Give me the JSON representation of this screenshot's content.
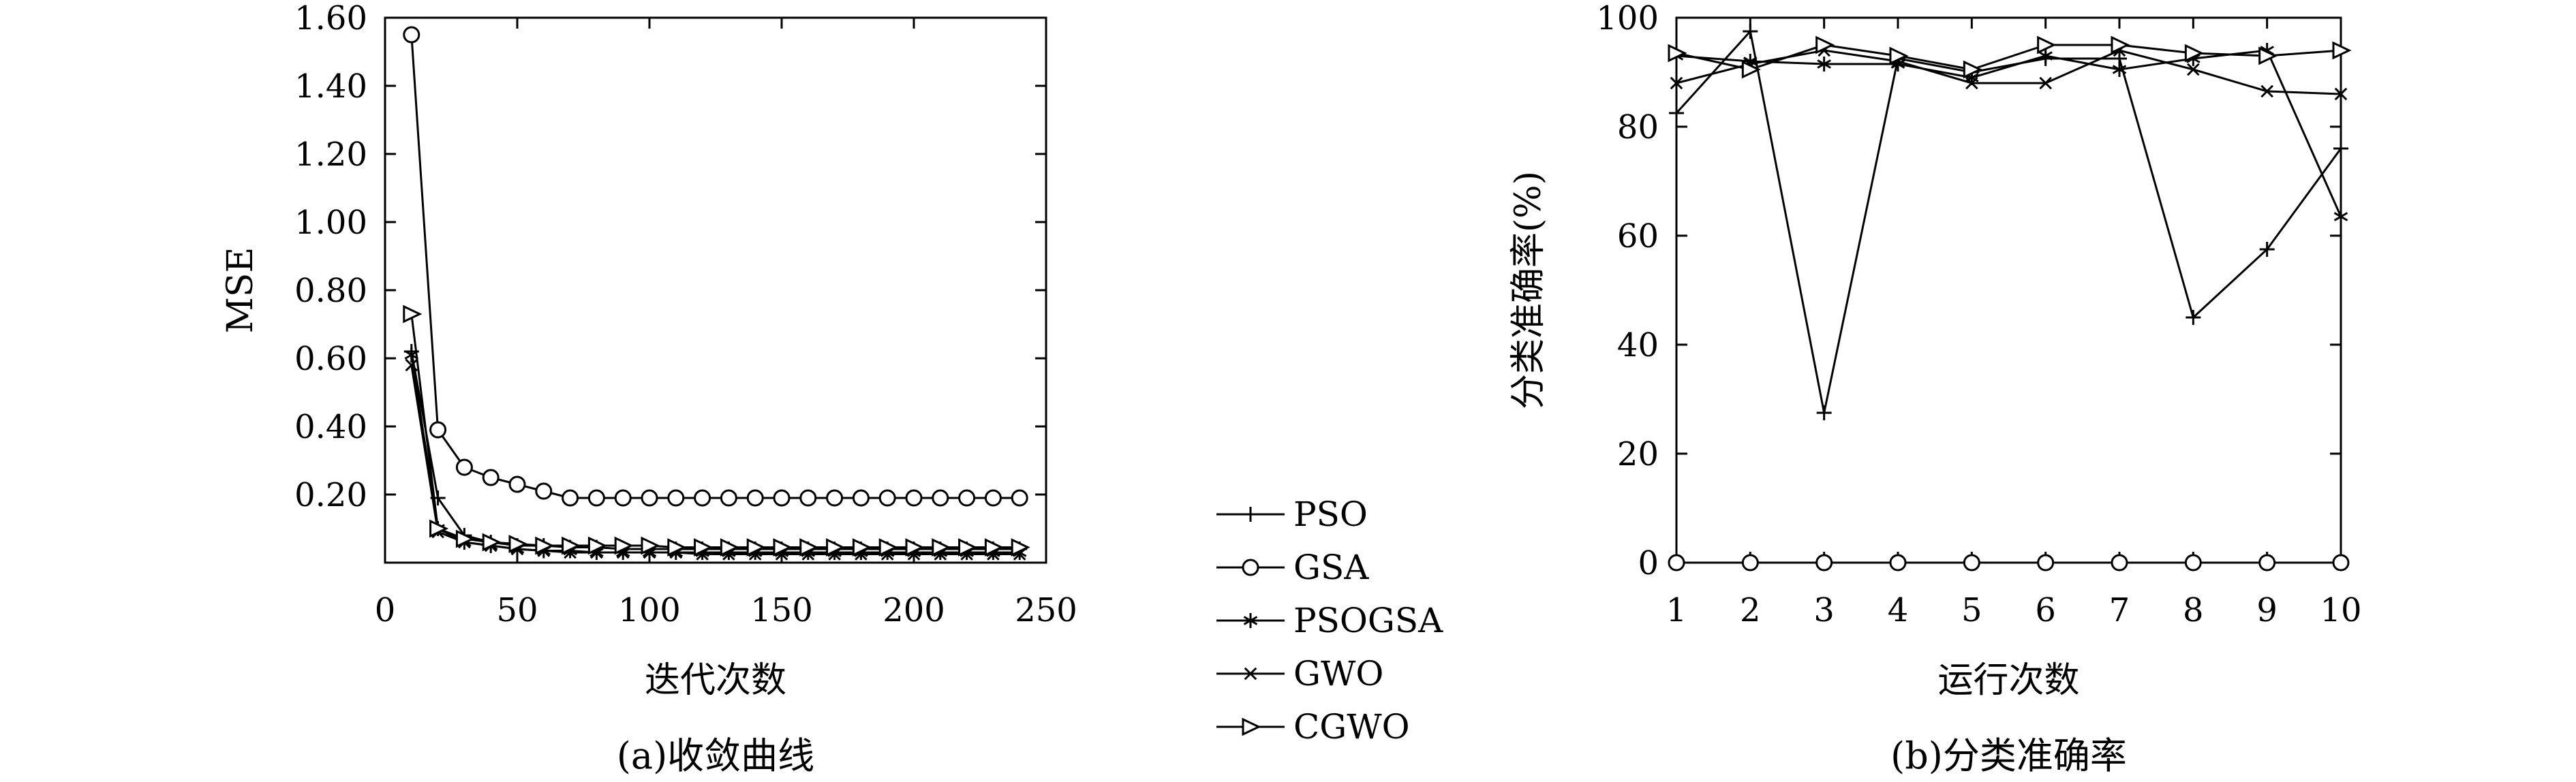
{
  "colors": {
    "ink": "#000000",
    "background": "#ffffff"
  },
  "legend": [
    "PSO",
    "GSA",
    "PSOGSA",
    "GWO",
    "CGWO"
  ],
  "chart_data": [
    {
      "type": "line",
      "caption": "(a)收敛曲线",
      "xlabel": "迭代次数",
      "ylabel": "MSE",
      "xlim": [
        0,
        250
      ],
      "ylim": [
        0,
        1.6
      ],
      "xticks": [
        0,
        50,
        100,
        150,
        200,
        250
      ],
      "yticks": [
        0.2,
        0.4,
        0.6,
        0.8,
        1.0,
        1.2,
        1.4,
        1.6
      ],
      "x_tick_labels": [
        "0",
        "50",
        "100",
        "150",
        "200",
        "250"
      ],
      "y_tick_labels": [
        "0.20",
        "0.40",
        "0.60",
        "0.80",
        "1.00",
        "1.20",
        "1.40",
        "1.60"
      ],
      "grid": false,
      "x": [
        10,
        20,
        30,
        40,
        50,
        60,
        70,
        80,
        90,
        100,
        110,
        120,
        130,
        140,
        150,
        160,
        170,
        180,
        190,
        200,
        210,
        220,
        230,
        240
      ],
      "series": [
        {
          "name": "PSO",
          "marker": "plus",
          "values": [
            0.62,
            0.19,
            0.08,
            0.06,
            0.05,
            0.05,
            0.045,
            0.045,
            0.04,
            0.04,
            0.04,
            0.04,
            0.04,
            0.04,
            0.04,
            0.04,
            0.04,
            0.04,
            0.04,
            0.04,
            0.04,
            0.04,
            0.04,
            0.04
          ]
        },
        {
          "name": "GSA",
          "marker": "circle",
          "values": [
            1.55,
            0.39,
            0.28,
            0.25,
            0.23,
            0.21,
            0.19,
            0.19,
            0.19,
            0.19,
            0.19,
            0.19,
            0.19,
            0.19,
            0.19,
            0.19,
            0.19,
            0.19,
            0.19,
            0.19,
            0.19,
            0.19,
            0.19,
            0.19
          ]
        },
        {
          "name": "PSOGSA",
          "marker": "asterisk",
          "values": [
            0.61,
            0.1,
            0.06,
            0.05,
            0.04,
            0.035,
            0.035,
            0.03,
            0.03,
            0.03,
            0.03,
            0.03,
            0.03,
            0.03,
            0.03,
            0.03,
            0.03,
            0.03,
            0.03,
            0.03,
            0.03,
            0.03,
            0.03,
            0.03
          ]
        },
        {
          "name": "GWO",
          "marker": "x",
          "values": [
            0.58,
            0.09,
            0.06,
            0.05,
            0.04,
            0.035,
            0.03,
            0.03,
            0.03,
            0.03,
            0.03,
            0.025,
            0.025,
            0.025,
            0.025,
            0.025,
            0.025,
            0.025,
            0.025,
            0.025,
            0.025,
            0.025,
            0.025,
            0.025
          ]
        },
        {
          "name": "CGWO",
          "marker": "triangle-right",
          "values": [
            0.73,
            0.1,
            0.07,
            0.06,
            0.055,
            0.05,
            0.05,
            0.05,
            0.05,
            0.05,
            0.045,
            0.045,
            0.045,
            0.045,
            0.045,
            0.045,
            0.045,
            0.045,
            0.045,
            0.045,
            0.045,
            0.045,
            0.045,
            0.045
          ]
        }
      ]
    },
    {
      "type": "line",
      "caption": "(b)分类准确率",
      "xlabel": "运行次数",
      "ylabel": "分类准确率(%)",
      "xlim": [
        1,
        10
      ],
      "ylim": [
        0,
        100
      ],
      "xticks": [
        1,
        2,
        3,
        4,
        5,
        6,
        7,
        8,
        9,
        10
      ],
      "yticks": [
        0,
        20,
        40,
        60,
        80,
        100
      ],
      "x_tick_labels": [
        "1",
        "2",
        "3",
        "4",
        "5",
        "6",
        "7",
        "8",
        "9",
        "10"
      ],
      "y_tick_labels": [
        "0",
        "20",
        "40",
        "60",
        "80",
        "100"
      ],
      "grid": false,
      "x": [
        1,
        2,
        3,
        4,
        5,
        6,
        7,
        8,
        9,
        10
      ],
      "series": [
        {
          "name": "PSO",
          "marker": "plus",
          "values": [
            82.5,
            97.5,
            27.5,
            92.5,
            90,
            92.5,
            92.5,
            45,
            57.5,
            76
          ]
        },
        {
          "name": "GSA",
          "marker": "circle",
          "values": [
            0,
            0,
            0,
            0,
            0,
            0,
            0,
            0,
            0,
            0
          ]
        },
        {
          "name": "PSOGSA",
          "marker": "asterisk",
          "values": [
            93,
            92,
            91.5,
            91.5,
            89,
            93,
            90.5,
            92.5,
            94,
            63.5
          ]
        },
        {
          "name": "GWO",
          "marker": "x",
          "values": [
            88,
            91.5,
            94,
            92,
            88,
            88,
            94,
            90.5,
            86.5,
            86
          ]
        },
        {
          "name": "CGWO",
          "marker": "triangle-right",
          "values": [
            93.5,
            90.5,
            95,
            93,
            90.5,
            95,
            95,
            93.5,
            93,
            94
          ]
        }
      ]
    }
  ]
}
